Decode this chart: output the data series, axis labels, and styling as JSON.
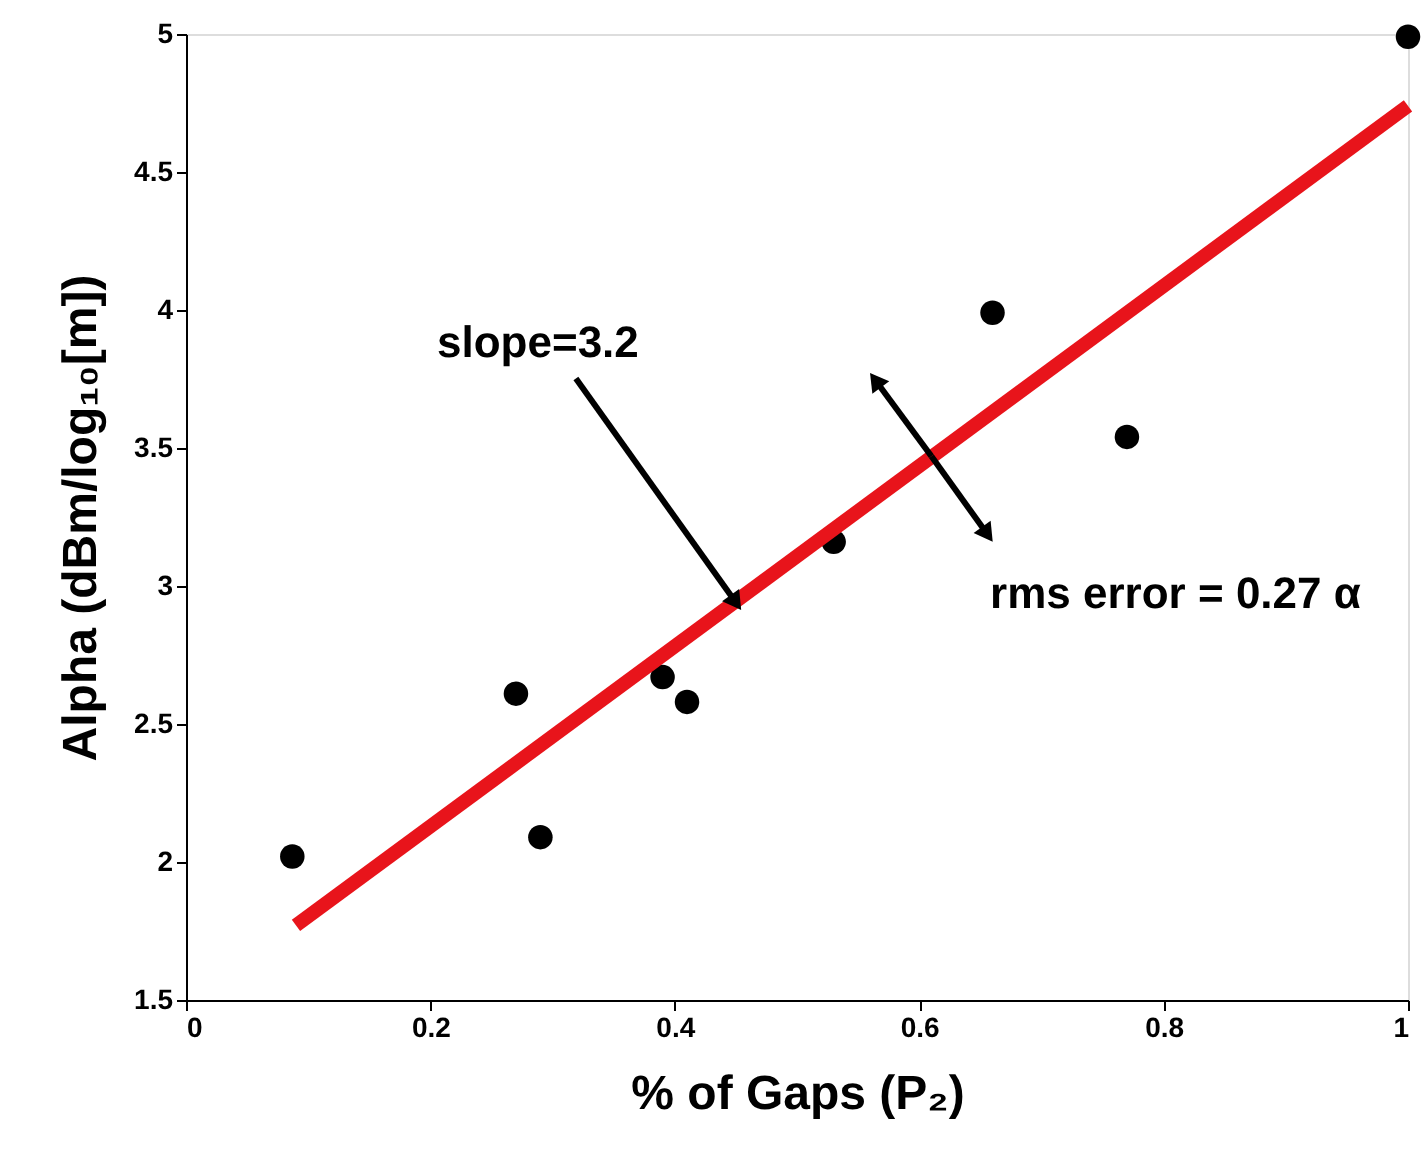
{
  "chart_data": {
    "type": "scatter",
    "xlabel": "% of Gaps (P₂)",
    "ylabel": "Alpha (dBm/log₁₀[m])",
    "xlim": [
      0,
      1
    ],
    "ylim": [
      1.5,
      5
    ],
    "xticks": [
      0,
      0.2,
      0.4,
      0.6,
      0.8,
      1
    ],
    "yticks": [
      1.5,
      2,
      2.5,
      3,
      3.5,
      4,
      4.5,
      5
    ],
    "grid": false,
    "series": [
      {
        "marker": "circle",
        "color": "#000000",
        "x": [
          0.087,
          0.27,
          0.29,
          0.39,
          0.41,
          0.53,
          0.66,
          0.77,
          1.0
        ],
        "values": [
          2.02,
          2.61,
          2.09,
          2.67,
          2.58,
          3.16,
          3.99,
          3.54,
          4.99
        ]
      },
      {
        "type": "line",
        "line_style": "solid",
        "color": "#e8141b",
        "x": [
          0.09,
          1.0
        ],
        "values": [
          1.77,
          4.74
        ]
      }
    ],
    "annotations": [
      {
        "text": "slope=3.2",
        "x": 0.45,
        "y": 2.94
      },
      {
        "text": "rms error = 0.27 α",
        "x": 0.61,
        "y": 3.47
      }
    ]
  }
}
